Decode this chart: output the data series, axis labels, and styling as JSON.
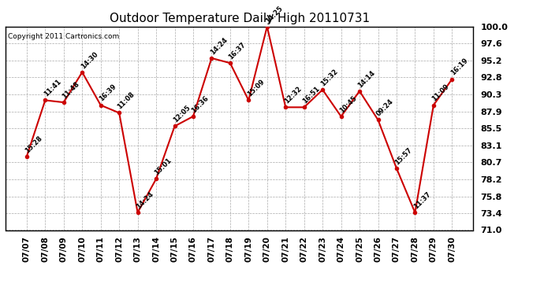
{
  "title": "Outdoor Temperature Daily High 20110731",
  "copyright": "Copyright 2011 Cartronics.com",
  "dates": [
    "07/07",
    "07/08",
    "07/09",
    "07/10",
    "07/11",
    "07/12",
    "07/13",
    "07/14",
    "07/15",
    "07/16",
    "07/17",
    "07/18",
    "07/19",
    "07/20",
    "07/21",
    "07/22",
    "07/23",
    "07/24",
    "07/25",
    "07/26",
    "07/27",
    "07/28",
    "07/29",
    "07/30"
  ],
  "values": [
    81.5,
    89.5,
    89.2,
    93.5,
    88.8,
    87.7,
    73.5,
    78.3,
    85.8,
    87.2,
    95.5,
    94.8,
    89.5,
    100.0,
    88.5,
    88.5,
    91.0,
    87.2,
    90.8,
    86.7,
    79.8,
    73.5,
    88.8,
    92.5
  ],
  "time_labels": [
    "15:28",
    "11:41",
    "11:48",
    "14:30",
    "16:39",
    "11:08",
    "14:24",
    "15:01",
    "12:05",
    "16:36",
    "14:24",
    "16:37",
    "15:09",
    "14:25",
    "12:32",
    "16:51",
    "15:32",
    "10:45",
    "14:14",
    "09:24",
    "15:57",
    "11:37",
    "11:09",
    "16:19"
  ],
  "line_color": "#cc0000",
  "marker_color": "#cc0000",
  "grid_color": "#aaaaaa",
  "bg_color": "#ffffff",
  "ylim": [
    71.0,
    100.0
  ],
  "yticks": [
    71.0,
    73.4,
    75.8,
    78.2,
    80.7,
    83.1,
    85.5,
    87.9,
    90.3,
    92.8,
    95.2,
    97.6,
    100.0
  ]
}
